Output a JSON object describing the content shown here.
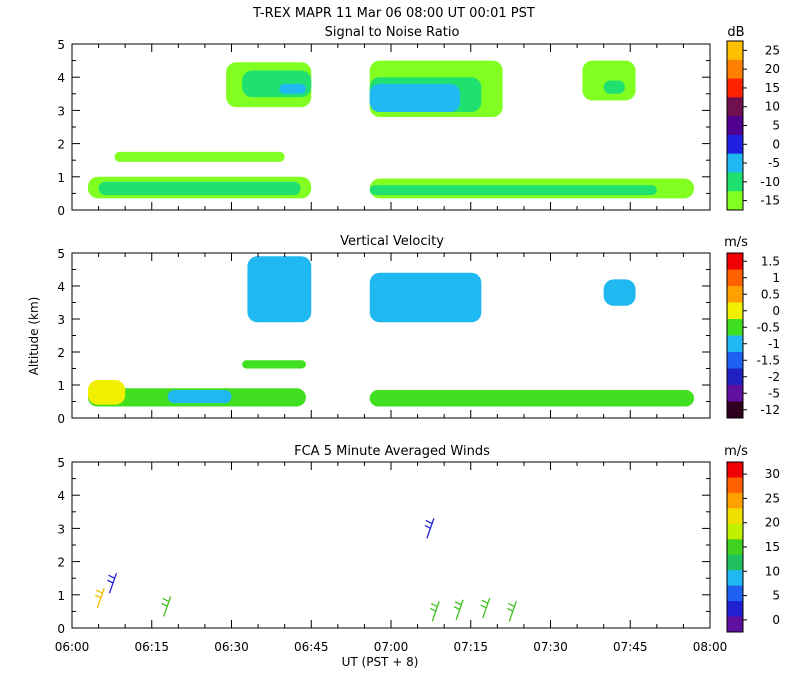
{
  "header": {
    "title": "T-REX   MAPR 11 Mar 06   08:00 UT   00:01   PST"
  },
  "xaxis": {
    "ticks": [
      "06:00",
      "06:15",
      "06:30",
      "06:45",
      "07:00",
      "07:15",
      "07:30",
      "07:45",
      "08:00"
    ],
    "label": "UT  (PST + 8)",
    "range_minutes": [
      0,
      120
    ]
  },
  "colors": {
    "white": "#ffffff",
    "snr_main": "#80ff20",
    "snr_mid": "#20e070",
    "snr_cyan": "#20b8f0",
    "vv_cyan": "#20b8f0",
    "vv_green": "#40e020",
    "vv_yellow": "#f0f000",
    "vv_red": "#f00000",
    "vv_blue": "#2030e0",
    "vv_purple": "#7010a0",
    "wind_yellow": "#f0c000",
    "wind_blue": "#2020d0",
    "wind_green": "#40c020"
  },
  "chart_data": [
    {
      "type": "heatmap",
      "title": "Signal to Noise Ratio",
      "ylabel": "",
      "ylim": [
        0,
        5
      ],
      "yticks": [
        "0",
        "1",
        "2",
        "3",
        "4",
        "5"
      ],
      "colorbar": {
        "unit": "dB",
        "labels": [
          "25",
          "20",
          "15",
          "10",
          "5",
          "0",
          "-5",
          "-10",
          "-15"
        ],
        "colors": [
          "#ffc000",
          "#ff8000",
          "#ff2000",
          "#701050",
          "#500090",
          "#2020e0",
          "#20b8f0",
          "#20e070",
          "#80ff20"
        ]
      },
      "blobs": [
        {
          "t": [
            3,
            45
          ],
          "alt": [
            0.35,
            1.0
          ],
          "color": "snr_main"
        },
        {
          "t": [
            5,
            43
          ],
          "alt": [
            0.45,
            0.85
          ],
          "color": "snr_mid"
        },
        {
          "t": [
            8,
            40
          ],
          "alt": [
            1.45,
            1.75
          ],
          "color": "snr_main"
        },
        {
          "t": [
            29,
            45
          ],
          "alt": [
            3.1,
            4.45
          ],
          "color": "snr_main"
        },
        {
          "t": [
            32,
            45
          ],
          "alt": [
            3.4,
            4.2
          ],
          "color": "snr_mid"
        },
        {
          "t": [
            39,
            44
          ],
          "alt": [
            3.5,
            3.8
          ],
          "color": "snr_cyan"
        },
        {
          "t": [
            56,
            81
          ],
          "alt": [
            2.8,
            4.5
          ],
          "color": "snr_main"
        },
        {
          "t": [
            56,
            77
          ],
          "alt": [
            2.95,
            4.0
          ],
          "color": "snr_mid"
        },
        {
          "t": [
            56,
            73
          ],
          "alt": [
            2.95,
            3.8
          ],
          "color": "snr_cyan"
        },
        {
          "t": [
            56,
            117
          ],
          "alt": [
            0.35,
            0.95
          ],
          "color": "snr_main"
        },
        {
          "t": [
            56,
            110
          ],
          "alt": [
            0.45,
            0.75
          ],
          "color": "snr_mid"
        },
        {
          "t": [
            96,
            106
          ],
          "alt": [
            3.3,
            4.5
          ],
          "color": "snr_main"
        },
        {
          "t": [
            100,
            104
          ],
          "alt": [
            3.5,
            3.9
          ],
          "color": "snr_mid"
        }
      ]
    },
    {
      "type": "heatmap",
      "title": "Vertical Velocity",
      "ylabel": "Altitude (km)",
      "ylim": [
        0,
        5
      ],
      "yticks": [
        "0",
        "1",
        "2",
        "3",
        "4",
        "5"
      ],
      "colorbar": {
        "unit": "m/s",
        "labels": [
          "1.5",
          "1",
          "0.5",
          "0",
          "-0.5",
          "-1",
          "-1.5",
          "-2",
          "-5",
          "-12"
        ],
        "colors": [
          "#f00000",
          "#ff6000",
          "#ffa000",
          "#f0f000",
          "#40e020",
          "#20b8f0",
          "#2060f0",
          "#2020c0",
          "#6010a0",
          "#300020"
        ]
      },
      "blobs": [
        {
          "t": [
            3,
            44
          ],
          "alt": [
            0.35,
            0.9
          ],
          "color": "vv_green"
        },
        {
          "t": [
            3,
            10
          ],
          "alt": [
            0.4,
            1.15
          ],
          "color": "vv_yellow"
        },
        {
          "t": [
            18,
            30
          ],
          "alt": [
            0.45,
            0.85
          ],
          "color": "vv_cyan"
        },
        {
          "t": [
            32,
            44
          ],
          "alt": [
            1.5,
            1.75
          ],
          "color": "vv_green"
        },
        {
          "t": [
            33,
            45
          ],
          "alt": [
            2.9,
            4.9
          ],
          "color": "vv_cyan"
        },
        {
          "t": [
            56,
            117
          ],
          "alt": [
            0.35,
            0.85
          ],
          "color": "vv_green"
        },
        {
          "t": [
            56,
            77
          ],
          "alt": [
            2.9,
            4.4
          ],
          "color": "vv_cyan"
        },
        {
          "t": [
            100,
            106
          ],
          "alt": [
            3.4,
            4.2
          ],
          "color": "vv_cyan"
        }
      ]
    },
    {
      "type": "scatter",
      "title": "FCA 5 Minute Averaged Winds",
      "ylabel": "",
      "ylim": [
        0,
        5
      ],
      "yticks": [
        "0",
        "1",
        "2",
        "3",
        "4",
        "5"
      ],
      "colorbar": {
        "unit": "m/s",
        "labels": [
          "30",
          "25",
          "20",
          "15",
          "10",
          "5",
          "0"
        ],
        "colors": [
          "#f00000",
          "#ff6000",
          "#ffa000",
          "#f0e000",
          "#c0f000",
          "#40d020",
          "#20c060",
          "#20b8f0",
          "#2060f0",
          "#2020d0",
          "#6010a0"
        ]
      },
      "barbs": [
        {
          "t": 5.5,
          "alt": 0.9,
          "color": "wind_yellow"
        },
        {
          "t": 7.8,
          "alt": 1.35,
          "color": "wind_blue"
        },
        {
          "t": 18.0,
          "alt": 0.65,
          "color": "wind_green"
        },
        {
          "t": 67.5,
          "alt": 3.0,
          "color": "wind_blue"
        },
        {
          "t": 68.5,
          "alt": 0.5,
          "color": "wind_green"
        },
        {
          "t": 73.0,
          "alt": 0.55,
          "color": "wind_green"
        },
        {
          "t": 78.0,
          "alt": 0.6,
          "color": "wind_green"
        },
        {
          "t": 83.0,
          "alt": 0.5,
          "color": "wind_green"
        }
      ]
    }
  ]
}
